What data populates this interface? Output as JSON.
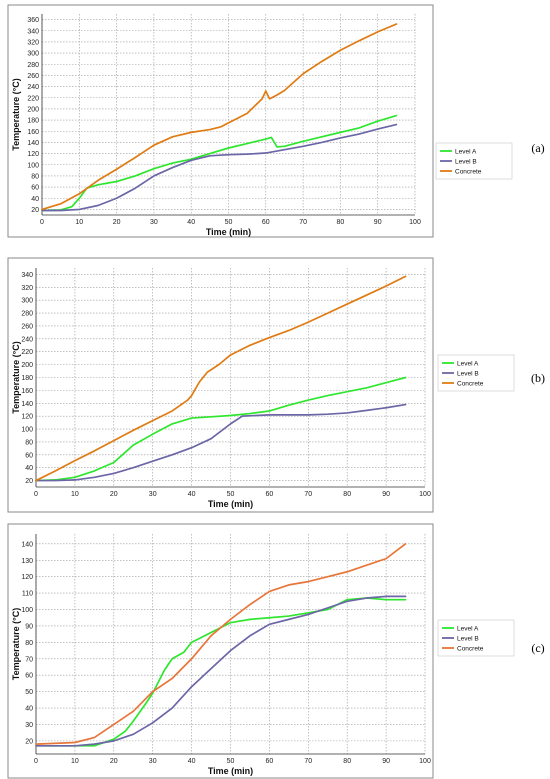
{
  "chart_data": [
    {
      "type": "line",
      "panel_label": "(a)",
      "xlabel": "Time (min)",
      "ylabel": "Temperature (°C)",
      "xlim": [
        0,
        100
      ],
      "ylim": [
        10,
        370
      ],
      "xticks": [
        0,
        10,
        20,
        30,
        40,
        50,
        60,
        70,
        80,
        90,
        100
      ],
      "yticks": [
        20,
        40,
        60,
        80,
        100,
        120,
        140,
        160,
        180,
        200,
        220,
        240,
        260,
        280,
        300,
        320,
        340,
        360
      ],
      "grid": true,
      "legend_position": "right",
      "series": [
        {
          "name": "Level A",
          "color": "#2ee62e",
          "points": [
            [
              0,
              18
            ],
            [
              5,
              19
            ],
            [
              8,
              25
            ],
            [
              10,
              40
            ],
            [
              12,
              58
            ],
            [
              15,
              64
            ],
            [
              20,
              70
            ],
            [
              25,
              80
            ],
            [
              30,
              93
            ],
            [
              35,
              103
            ],
            [
              40,
              110
            ],
            [
              45,
              120
            ],
            [
              50,
              130
            ],
            [
              55,
              138
            ],
            [
              60,
              146
            ],
            [
              61.5,
              149
            ],
            [
              63,
              132
            ],
            [
              65,
              133
            ],
            [
              70,
              142
            ],
            [
              75,
              150
            ],
            [
              80,
              158
            ],
            [
              85,
              166
            ],
            [
              90,
              178
            ],
            [
              95,
              188
            ]
          ]
        },
        {
          "name": "Level B",
          "color": "#6b66a6",
          "points": [
            [
              0,
              18
            ],
            [
              5,
              18
            ],
            [
              10,
              20
            ],
            [
              15,
              27
            ],
            [
              20,
              40
            ],
            [
              25,
              58
            ],
            [
              30,
              80
            ],
            [
              35,
              95
            ],
            [
              40,
              108
            ],
            [
              45,
              116
            ],
            [
              50,
              118
            ],
            [
              55,
              119
            ],
            [
              60,
              121
            ],
            [
              65,
              127
            ],
            [
              70,
              133
            ],
            [
              75,
              140
            ],
            [
              80,
              148
            ],
            [
              85,
              155
            ],
            [
              90,
              164
            ],
            [
              95,
              172
            ]
          ]
        },
        {
          "name": "Concrete",
          "color": "#e07b13",
          "points": [
            [
              0,
              20
            ],
            [
              5,
              30
            ],
            [
              10,
              48
            ],
            [
              15,
              72
            ],
            [
              20,
              92
            ],
            [
              25,
              113
            ],
            [
              30,
              135
            ],
            [
              35,
              150
            ],
            [
              40,
              158
            ],
            [
              45,
              163
            ],
            [
              48,
              168
            ],
            [
              50,
              175
            ],
            [
              55,
              192
            ],
            [
              59,
              218
            ],
            [
              60,
              232
            ],
            [
              61,
              218
            ],
            [
              63,
              225
            ],
            [
              65,
              233
            ],
            [
              70,
              263
            ],
            [
              75,
              285
            ],
            [
              80,
              305
            ],
            [
              85,
              322
            ],
            [
              90,
              338
            ],
            [
              95,
              352
            ]
          ]
        }
      ]
    },
    {
      "type": "line",
      "panel_label": "(b)",
      "xlabel": "Time (min)",
      "ylabel": "Temperature (°C)",
      "xlim": [
        0,
        100
      ],
      "ylim": [
        10,
        350
      ],
      "xticks": [
        0,
        10,
        20,
        30,
        40,
        50,
        60,
        70,
        80,
        90,
        100
      ],
      "yticks": [
        20,
        40,
        60,
        80,
        100,
        120,
        140,
        160,
        180,
        200,
        220,
        240,
        260,
        280,
        300,
        320,
        340
      ],
      "grid": true,
      "legend_position": "right",
      "series": [
        {
          "name": "Level A",
          "color": "#2ee62e",
          "points": [
            [
              0,
              20
            ],
            [
              5,
              21
            ],
            [
              10,
              25
            ],
            [
              15,
              35
            ],
            [
              20,
              48
            ],
            [
              25,
              75
            ],
            [
              30,
              92
            ],
            [
              35,
              108
            ],
            [
              40,
              117
            ],
            [
              45,
              119
            ],
            [
              50,
              121
            ],
            [
              55,
              124
            ],
            [
              60,
              128
            ],
            [
              65,
              137
            ],
            [
              70,
              145
            ],
            [
              75,
              152
            ],
            [
              80,
              158
            ],
            [
              85,
              164
            ],
            [
              90,
              172
            ],
            [
              95,
              180
            ]
          ]
        },
        {
          "name": "Level B",
          "color": "#6b66a6",
          "points": [
            [
              0,
              20
            ],
            [
              5,
              20
            ],
            [
              10,
              21
            ],
            [
              15,
              25
            ],
            [
              20,
              31
            ],
            [
              25,
              40
            ],
            [
              30,
              50
            ],
            [
              35,
              60
            ],
            [
              40,
              71
            ],
            [
              45,
              85
            ],
            [
              50,
              108
            ],
            [
              53,
              120
            ],
            [
              60,
              122
            ],
            [
              70,
              122
            ],
            [
              75,
              123
            ],
            [
              80,
              125
            ],
            [
              85,
              129
            ],
            [
              90,
              133
            ],
            [
              95,
              138
            ]
          ]
        },
        {
          "name": "Concrete",
          "color": "#e07b13",
          "points": [
            [
              0,
              20
            ],
            [
              5,
              35
            ],
            [
              10,
              51
            ],
            [
              15,
              66
            ],
            [
              20,
              82
            ],
            [
              25,
              98
            ],
            [
              30,
              113
            ],
            [
              35,
              128
            ],
            [
              39,
              145
            ],
            [
              40,
              152
            ],
            [
              42,
              173
            ],
            [
              44,
              188
            ],
            [
              47,
              200
            ],
            [
              50,
              215
            ],
            [
              55,
              230
            ],
            [
              60,
              242
            ],
            [
              65,
              253
            ],
            [
              70,
              266
            ],
            [
              75,
              280
            ],
            [
              80,
              294
            ],
            [
              85,
              308
            ],
            [
              90,
              322
            ],
            [
              95,
              337
            ]
          ]
        }
      ]
    },
    {
      "type": "line",
      "panel_label": "(c)",
      "xlabel": "Time (min)",
      "ylabel": "Temperature (°C)",
      "xlim": [
        0,
        100
      ],
      "ylim": [
        12,
        146
      ],
      "xticks": [
        0,
        10,
        20,
        30,
        40,
        50,
        60,
        70,
        80,
        90,
        100
      ],
      "yticks": [
        20,
        30,
        40,
        50,
        60,
        70,
        80,
        90,
        100,
        110,
        120,
        130,
        140
      ],
      "grid": true,
      "legend_position": "right",
      "series": [
        {
          "name": "Level A",
          "color": "#2ee62e",
          "points": [
            [
              0,
              17
            ],
            [
              10,
              17
            ],
            [
              15,
              17
            ],
            [
              20,
              21
            ],
            [
              23,
              26
            ],
            [
              25,
              32
            ],
            [
              28,
              42
            ],
            [
              30,
              49
            ],
            [
              33,
              63
            ],
            [
              35,
              70
            ],
            [
              38,
              74
            ],
            [
              40,
              80
            ],
            [
              45,
              86
            ],
            [
              50,
              92
            ],
            [
              55,
              94
            ],
            [
              60,
              95
            ],
            [
              65,
              96
            ],
            [
              70,
              98
            ],
            [
              75,
              100
            ],
            [
              80,
              106
            ],
            [
              85,
              107
            ],
            [
              90,
              106
            ],
            [
              95,
              106
            ]
          ]
        },
        {
          "name": "Level B",
          "color": "#6b66a6",
          "points": [
            [
              0,
              17
            ],
            [
              10,
              17
            ],
            [
              15,
              18
            ],
            [
              20,
              20
            ],
            [
              25,
              24
            ],
            [
              30,
              31
            ],
            [
              35,
              40
            ],
            [
              40,
              53
            ],
            [
              45,
              64
            ],
            [
              50,
              75
            ],
            [
              55,
              84
            ],
            [
              60,
              91
            ],
            [
              65,
              94
            ],
            [
              70,
              97
            ],
            [
              75,
              101
            ],
            [
              80,
              105
            ],
            [
              85,
              107
            ],
            [
              90,
              108
            ],
            [
              95,
              108
            ]
          ]
        },
        {
          "name": "Concrete",
          "color": "#e8753a",
          "points": [
            [
              0,
              18
            ],
            [
              10,
              19
            ],
            [
              15,
              22
            ],
            [
              20,
              30
            ],
            [
              25,
              38
            ],
            [
              30,
              50
            ],
            [
              35,
              58
            ],
            [
              40,
              70
            ],
            [
              45,
              84
            ],
            [
              50,
              94
            ],
            [
              55,
              103
            ],
            [
              60,
              111
            ],
            [
              65,
              115
            ],
            [
              70,
              117
            ],
            [
              75,
              120
            ],
            [
              80,
              123
            ],
            [
              85,
              127
            ],
            [
              90,
              131
            ],
            [
              95,
              140
            ]
          ]
        }
      ]
    }
  ]
}
